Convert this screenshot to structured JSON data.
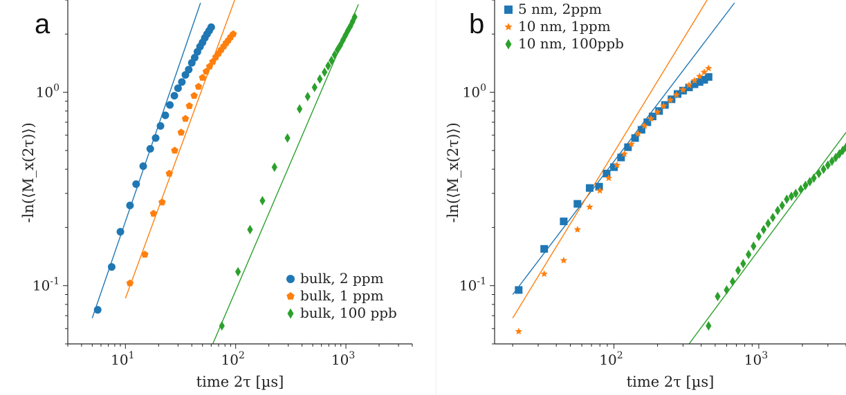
{
  "chart_data": [
    {
      "type": "scatter",
      "panel_label": "a",
      "xscale": "log",
      "yscale": "log",
      "xlim": [
        3.0,
        4000
      ],
      "ylim": [
        0.05,
        3.0
      ],
      "xlabel": "time 2τ [µs]",
      "ylabel": "-ln(⟨M_x(2τ)⟩)",
      "xticks": [
        {
          "value": 10,
          "exp": "1"
        },
        {
          "value": 100,
          "exp": "2"
        },
        {
          "value": 1000,
          "exp": "3"
        }
      ],
      "yticks": [
        {
          "value": 0.1,
          "exp": "-1"
        },
        {
          "value": 1,
          "exp": "0"
        }
      ],
      "legend_position": "bottom-right",
      "series": [
        {
          "name": "bulk, 2 ppm",
          "color": "#1f77b4",
          "marker": "circle",
          "x": [
            5.6,
            7.5,
            9.0,
            11.0,
            12.5,
            14.5,
            16.8,
            18.8,
            20.8,
            23.0,
            25.3,
            27.8,
            30.0,
            32.5,
            35.0,
            37.5,
            40.0,
            42.5,
            45.0,
            47.5,
            50.0,
            52.5,
            55.0,
            57.5,
            60.0
          ],
          "y": [
            0.075,
            0.125,
            0.19,
            0.26,
            0.335,
            0.415,
            0.51,
            0.58,
            0.67,
            0.76,
            0.86,
            0.96,
            1.05,
            1.13,
            1.23,
            1.31,
            1.42,
            1.51,
            1.62,
            1.72,
            1.81,
            1.91,
            2.0,
            2.08,
            2.17
          ],
          "fit": {
            "x": [
              5.0,
              48.0
            ],
            "y": [
              0.068,
              2.9
            ]
          }
        },
        {
          "name": "bulk, 1 ppm",
          "color": "#ff7f0e",
          "marker": "pentagon",
          "x": [
            11.0,
            15.0,
            18.0,
            21.5,
            25.0,
            28.0,
            32.0,
            35.0,
            38.0,
            42.0,
            46.0,
            50.0,
            54.0,
            58.0,
            62.0,
            66.0,
            70.0,
            74.0,
            78.0,
            82.0,
            86.0,
            90.0,
            95.0
          ],
          "y": [
            0.103,
            0.145,
            0.236,
            0.27,
            0.38,
            0.5,
            0.62,
            0.73,
            0.85,
            0.96,
            1.07,
            1.19,
            1.28,
            1.36,
            1.44,
            1.52,
            1.59,
            1.66,
            1.73,
            1.8,
            1.86,
            1.93,
            2.0
          ],
          "fit": {
            "x": [
              10.0,
              98.0
            ],
            "y": [
              0.086,
              3.0
            ]
          }
        },
        {
          "name": "bulk, 100 ppb",
          "color": "#2ca02c",
          "marker": "diamond",
          "x": [
            75,
            105,
            135,
            175,
            225,
            295,
            380,
            450,
            520,
            580,
            640,
            690,
            740,
            790,
            840,
            890,
            940,
            990,
            1040,
            1100,
            1150,
            1200
          ],
          "y": [
            0.062,
            0.118,
            0.195,
            0.275,
            0.41,
            0.58,
            0.82,
            0.95,
            1.06,
            1.17,
            1.27,
            1.37,
            1.46,
            1.56,
            1.66,
            1.75,
            1.86,
            1.97,
            2.08,
            2.2,
            2.32,
            2.45
          ],
          "fit": {
            "x": [
              62,
              1300
            ],
            "y": [
              0.05,
              2.85
            ]
          }
        }
      ]
    },
    {
      "type": "scatter",
      "panel_label": "b",
      "xscale": "log",
      "yscale": "log",
      "xlim": [
        15,
        4000
      ],
      "ylim": [
        0.05,
        3.0
      ],
      "xlabel": "time 2τ [µs]",
      "ylabel": "-ln(⟨M_x(2τ)⟩)",
      "xticks": [
        {
          "value": 100,
          "exp": "2"
        },
        {
          "value": 1000,
          "exp": "3"
        }
      ],
      "yticks": [
        {
          "value": 0.1,
          "exp": "-1"
        },
        {
          "value": 1,
          "exp": "0"
        }
      ],
      "legend_position": "top-left",
      "series": [
        {
          "name": "5 nm, 2ppm",
          "color": "#1f77b4",
          "marker": "square",
          "x": [
            22,
            33,
            45,
            56,
            68,
            79,
            89,
            100,
            112,
            125,
            140,
            155,
            170,
            185,
            205,
            225,
            250,
            275,
            300,
            330,
            360,
            390,
            420,
            450
          ],
          "y": [
            0.095,
            0.155,
            0.215,
            0.265,
            0.32,
            0.325,
            0.38,
            0.41,
            0.46,
            0.52,
            0.58,
            0.64,
            0.7,
            0.75,
            0.8,
            0.86,
            0.92,
            0.98,
            1.02,
            1.06,
            1.1,
            1.13,
            1.16,
            1.2
          ],
          "fit": {
            "x": [
              20,
              680
            ],
            "y": [
              0.09,
              2.9
            ]
          }
        },
        {
          "name": "10 nm, 1ppm",
          "color": "#ff7f0e",
          "marker": "star",
          "x": [
            22,
            33,
            45,
            56,
            68,
            80,
            92,
            105,
            118,
            132,
            147,
            163,
            180,
            200,
            220,
            245,
            270,
            300,
            330,
            360,
            390,
            420,
            450
          ],
          "y": [
            0.058,
            0.115,
            0.135,
            0.195,
            0.255,
            0.31,
            0.36,
            0.42,
            0.48,
            0.54,
            0.61,
            0.67,
            0.73,
            0.79,
            0.85,
            0.91,
            0.97,
            1.03,
            1.09,
            1.15,
            1.21,
            1.27,
            1.33
          ],
          "fit": {
            "x": [
              20,
              440
            ],
            "y": [
              0.068,
              3.0
            ]
          }
        },
        {
          "name": "10 nm, 100ppb",
          "color": "#2ca02c",
          "marker": "diamond",
          "x": [
            450,
            520,
            600,
            660,
            720,
            780,
            850,
            920,
            1000,
            1080,
            1160,
            1250,
            1350,
            1450,
            1560,
            1680,
            1800,
            1950,
            2100,
            2250,
            2400,
            2600,
            2800,
            3000,
            3200,
            3400,
            3600,
            3800,
            4000
          ],
          "y": [
            0.062,
            0.088,
            0.095,
            0.105,
            0.12,
            0.13,
            0.145,
            0.16,
            0.18,
            0.195,
            0.21,
            0.225,
            0.245,
            0.26,
            0.28,
            0.29,
            0.3,
            0.315,
            0.33,
            0.345,
            0.36,
            0.38,
            0.4,
            0.42,
            0.44,
            0.46,
            0.48,
            0.5,
            0.52
          ],
          "fit": {
            "x": [
              330,
              4000
            ],
            "y": [
              0.05,
              0.62
            ]
          }
        }
      ]
    }
  ]
}
